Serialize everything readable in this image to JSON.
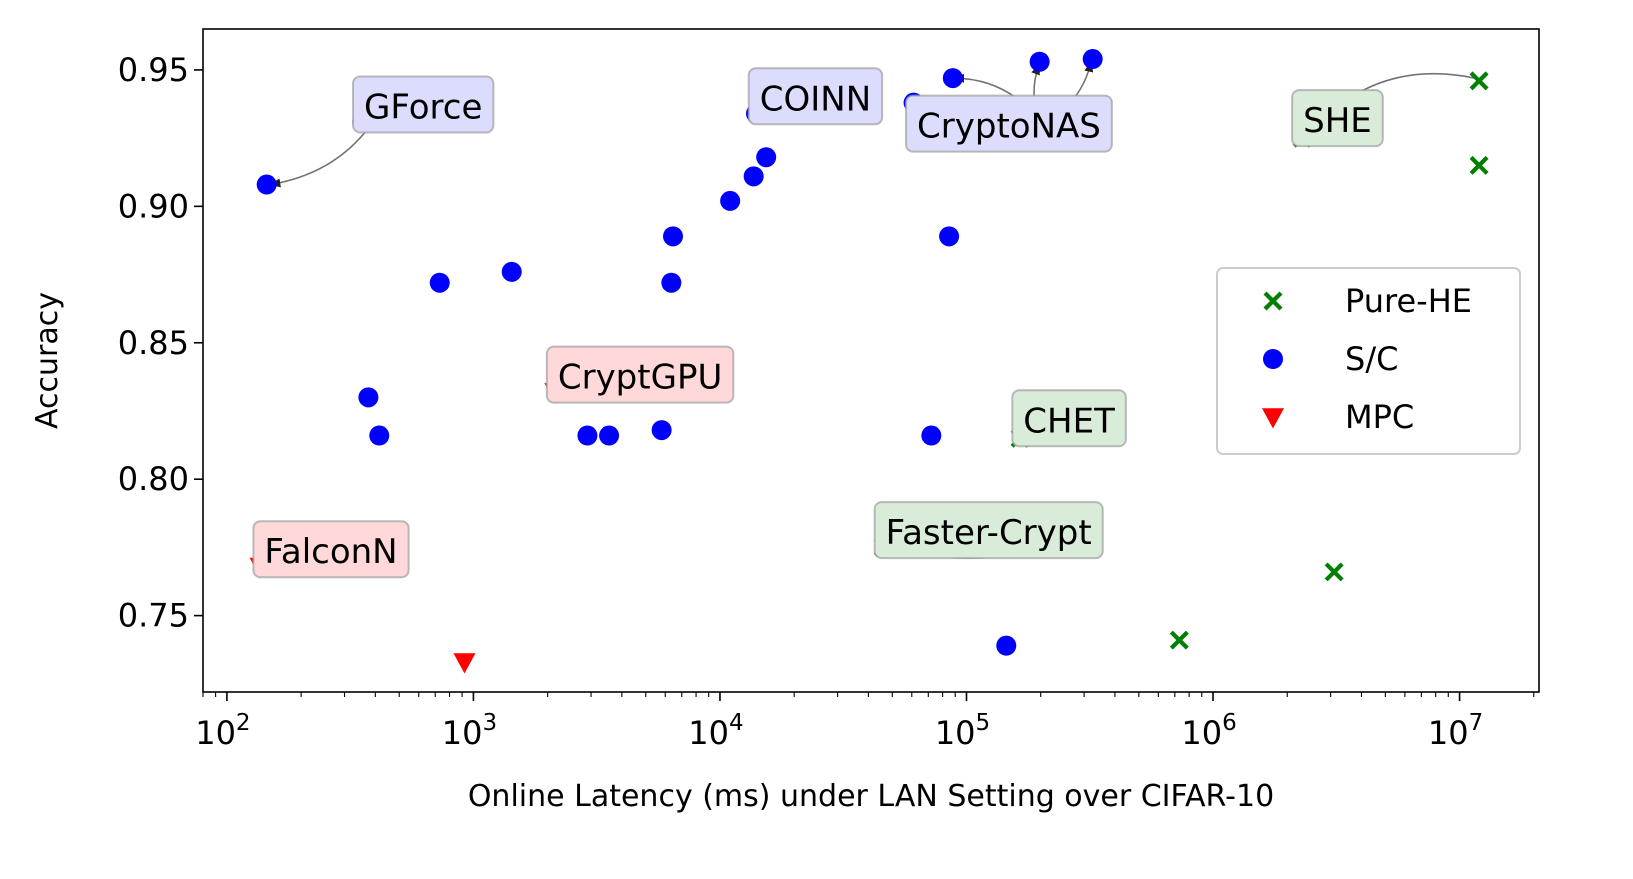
{
  "chart_data": {
    "type": "scatter",
    "xscale": "log",
    "xlabel": "Online Latency (ms) under LAN Setting over CIFAR-10",
    "ylabel": "Accuracy",
    "xlim": [
      80,
      21000000
    ],
    "ylim": [
      0.722,
      0.965
    ],
    "x_ticks": [
      {
        "value": 100,
        "base": "10",
        "exp": "2"
      },
      {
        "value": 1000,
        "base": "10",
        "exp": "3"
      },
      {
        "value": 10000,
        "base": "10",
        "exp": "4"
      },
      {
        "value": 100000,
        "base": "10",
        "exp": "5"
      },
      {
        "value": 1000000,
        "base": "10",
        "exp": "6"
      },
      {
        "value": 10000000,
        "base": "10",
        "exp": "7"
      }
    ],
    "y_ticks": [
      {
        "value": 0.75,
        "label": "0.75"
      },
      {
        "value": 0.8,
        "label": "0.80"
      },
      {
        "value": 0.85,
        "label": "0.85"
      },
      {
        "value": 0.9,
        "label": "0.90"
      },
      {
        "value": 0.95,
        "label": "0.95"
      }
    ],
    "legend": {
      "placement": "center-right",
      "entries": [
        "Pure-HE",
        "S/C",
        "MPC"
      ]
    },
    "series": [
      {
        "name": "Pure-HE",
        "marker": "x",
        "color": "#008000",
        "points": [
          {
            "x": 2300000,
            "y": 0.925
          },
          {
            "x": 12000000,
            "y": 0.946
          },
          {
            "x": 12000000,
            "y": 0.915
          },
          {
            "x": 165000,
            "y": 0.815
          },
          {
            "x": 46000,
            "y": 0.775
          },
          {
            "x": 3100000,
            "y": 0.766
          },
          {
            "x": 730000,
            "y": 0.741
          }
        ]
      },
      {
        "name": "S/C",
        "marker": "circle",
        "color": "#0000ff",
        "points": [
          {
            "x": 145,
            "y": 0.908
          },
          {
            "x": 355,
            "y": 0.931
          },
          {
            "x": 375,
            "y": 0.83
          },
          {
            "x": 415,
            "y": 0.816
          },
          {
            "x": 730,
            "y": 0.872
          },
          {
            "x": 1430,
            "y": 0.876
          },
          {
            "x": 2900,
            "y": 0.816
          },
          {
            "x": 3550,
            "y": 0.816
          },
          {
            "x": 5800,
            "y": 0.818
          },
          {
            "x": 6350,
            "y": 0.872
          },
          {
            "x": 6450,
            "y": 0.889
          },
          {
            "x": 11000,
            "y": 0.902
          },
          {
            "x": 13700,
            "y": 0.911
          },
          {
            "x": 14000,
            "y": 0.934
          },
          {
            "x": 15400,
            "y": 0.918
          },
          {
            "x": 61000,
            "y": 0.938
          },
          {
            "x": 72000,
            "y": 0.816
          },
          {
            "x": 85000,
            "y": 0.889
          },
          {
            "x": 88000,
            "y": 0.947
          },
          {
            "x": 145000,
            "y": 0.739
          },
          {
            "x": 198000,
            "y": 0.953
          },
          {
            "x": 262000,
            "y": 0.816
          },
          {
            "x": 325000,
            "y": 0.954
          }
        ]
      },
      {
        "name": "MPC",
        "marker": "triangle-down",
        "color": "#ff0000",
        "points": [
          {
            "x": 2150,
            "y": 0.832
          },
          {
            "x": 137,
            "y": 0.768
          },
          {
            "x": 920,
            "y": 0.733
          }
        ]
      }
    ],
    "annotations": [
      {
        "text": "GForce",
        "group": "S/C",
        "box_color": "#dcdcfc",
        "box_anchor": {
          "x": 360,
          "y": 0.9355
        },
        "arrows": [
          {
            "from": {
              "x": 440,
              "y": 0.9385
            },
            "to": {
              "x": 370,
              "y": 0.931
            },
            "curve": 0.3
          },
          {
            "from": {
              "x": 440,
              "y": 0.9385
            },
            "to": {
              "x": 150,
              "y": 0.908
            },
            "curve": -0.25
          }
        ]
      },
      {
        "text": "COINN",
        "group": "S/C",
        "box_color": "#dcdcfc",
        "box_anchor": {
          "x": 14500,
          "y": 0.9385
        },
        "arrows": [
          {
            "from": {
              "x": 25000,
              "y": 0.941
            },
            "to": {
              "x": 14800,
              "y": 0.934
            },
            "curve": 0.3
          }
        ]
      },
      {
        "text": "CryptoNAS",
        "group": "S/C",
        "box_color": "#dcdcfc",
        "box_anchor": {
          "x": 63000,
          "y": 0.9285
        },
        "arrows": [
          {
            "from": {
              "x": 200000,
              "y": 0.9305
            },
            "to": {
              "x": 62500,
              "y": 0.938
            },
            "curve": -0.3
          },
          {
            "from": {
              "x": 200000,
              "y": 0.9305
            },
            "to": {
              "x": 89000,
              "y": 0.947
            },
            "curve": 0.25
          },
          {
            "from": {
              "x": 200000,
              "y": 0.9305
            },
            "to": {
              "x": 197000,
              "y": 0.952
            },
            "curve": -0.2
          },
          {
            "from": {
              "x": 200000,
              "y": 0.9305
            },
            "to": {
              "x": 320000,
              "y": 0.953
            },
            "curve": 0.25
          }
        ]
      },
      {
        "text": "SHE",
        "group": "Pure-HE",
        "box_color": "#d9ecd9",
        "box_anchor": {
          "x": 2320000,
          "y": 0.9305
        },
        "arrows": [
          {
            "from": {
              "x": 11500000,
              "y": 0.947
            },
            "to": {
              "x": 2400000,
              "y": 0.9255
            },
            "curve": 0.3
          }
        ]
      },
      {
        "text": "CryptGPU",
        "group": "MPC",
        "box_color": "#ffd9d9",
        "box_anchor": {
          "x": 2200,
          "y": 0.8365
        },
        "arrows": [
          {
            "from": {
              "x": 6500,
              "y": 0.8385
            },
            "to": {
              "x": 2250,
              "y": 0.832
            },
            "curve": -0.25
          }
        ]
      },
      {
        "text": "CHET",
        "group": "Pure-HE",
        "box_color": "#d9ecd9",
        "box_anchor": {
          "x": 170000,
          "y": 0.8205
        },
        "arrows": [
          {
            "from": {
              "x": 290000,
              "y": 0.8245
            },
            "to": {
              "x": 170000,
              "y": 0.8155
            },
            "curve": -0.3
          }
        ]
      },
      {
        "text": "Faster-Crypt",
        "group": "Pure-HE",
        "box_color": "#d9ecd9",
        "box_anchor": {
          "x": 47000,
          "y": 0.7795
        },
        "arrows": [
          {
            "from": {
              "x": 340000,
              "y": 0.783
            },
            "to": {
              "x": 48500,
              "y": 0.7755
            },
            "curve": -0.2
          }
        ]
      },
      {
        "text": "FalconN",
        "group": "MPC",
        "box_color": "#ffd9d9",
        "box_anchor": {
          "x": 142,
          "y": 0.7725
        },
        "arrows": [
          {
            "from": {
              "x": 350,
              "y": 0.7755
            },
            "to": {
              "x": 143,
              "y": 0.7685
            },
            "curve": -0.25
          }
        ]
      }
    ]
  }
}
